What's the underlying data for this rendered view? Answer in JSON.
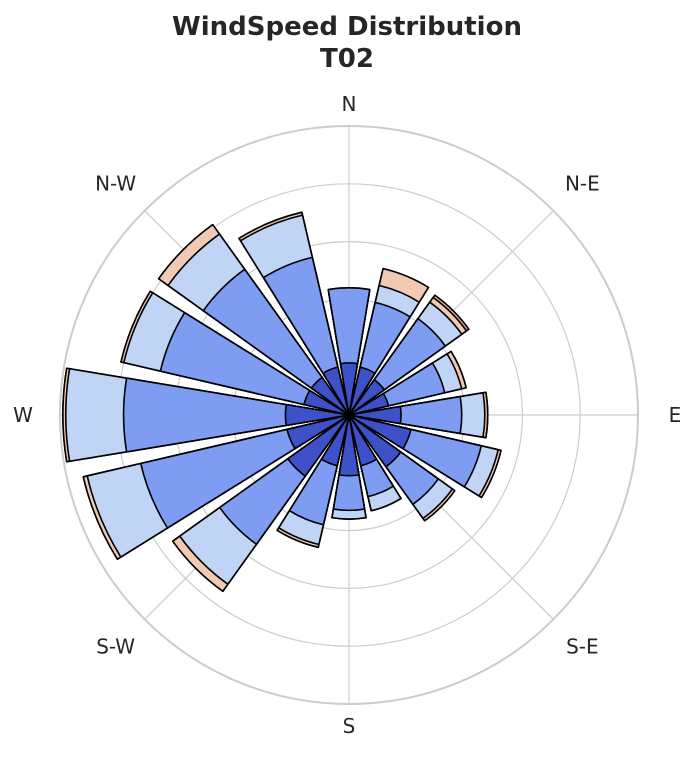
{
  "chart_data": {
    "type": "windrose",
    "title_line1": "WindSpeed Distribution",
    "title_line2": "T02",
    "directions": [
      "N",
      "N-E",
      "E",
      "S-E",
      "S",
      "S-W",
      "W",
      "N-W"
    ],
    "sectors_deg": [
      0,
      22.5,
      45,
      67.5,
      90,
      112.5,
      135,
      157.5,
      180,
      202.5,
      225,
      247.5,
      270,
      292.5,
      315,
      337.5
    ],
    "bin_colors": [
      "#3f51c9",
      "#7d9cf2",
      "#c0d4f5",
      "#f2c9b3",
      "#e3a48c"
    ],
    "radial_max": 5,
    "grid": true,
    "stacked_cumulative_radii": [
      [
        0.9,
        2.2,
        2.15,
        2.2,
        2.15
      ],
      [
        0.85,
        2.0,
        2.3,
        2.6,
        2.6
      ],
      [
        0.75,
        2.05,
        2.4,
        2.5,
        2.55
      ],
      [
        0.7,
        1.7,
        2.0,
        2.08,
        2.08
      ],
      [
        0.9,
        1.95,
        2.35,
        2.4,
        2.4
      ],
      [
        1.1,
        2.35,
        2.65,
        2.7,
        2.7
      ],
      [
        1.1,
        1.9,
        2.2,
        2.25,
        2.25
      ],
      [
        0.9,
        1.45,
        1.7,
        1.7,
        1.7
      ],
      [
        1.05,
        1.65,
        1.8,
        1.8,
        1.8
      ],
      [
        0.9,
        1.95,
        2.3,
        2.35,
        2.35
      ],
      [
        1.3,
        2.75,
        3.6,
        3.75,
        3.75
      ],
      [
        1.1,
        3.7,
        4.65,
        4.72,
        4.72
      ],
      [
        1.1,
        3.9,
        4.9,
        4.95,
        4.95
      ],
      [
        0.8,
        3.35,
        4.0,
        4.05,
        4.05
      ],
      [
        0.8,
        3.1,
        3.85,
        4.05,
        4.05
      ],
      [
        0.85,
        2.8,
        3.55,
        3.6,
        3.6
      ]
    ]
  }
}
